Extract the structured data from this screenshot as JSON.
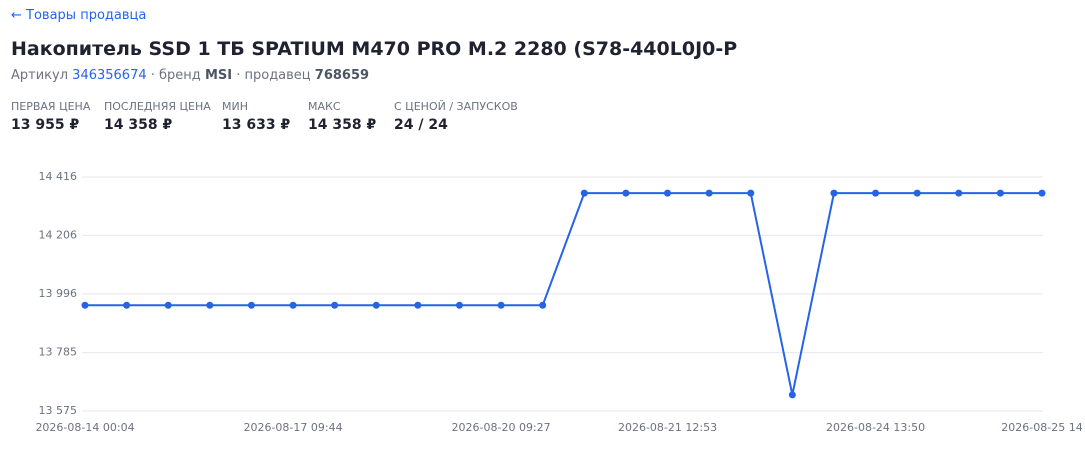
{
  "back_link": "← Товары продавца",
  "header": {
    "title": "Накопитель SSD 1 ТБ SPATIUM M470 PRO M.2 2280 (S78-440L0J0-P",
    "meta": {
      "article_label": "Артикул",
      "article": "346356674",
      "brand_label": "· бренд",
      "brand": "MSI",
      "seller_label": "· продавец",
      "seller": "768659"
    }
  },
  "stats": [
    {
      "label": "ПЕРВАЯ ЦЕНА",
      "value": "13 955 ₽"
    },
    {
      "label": "ПОСЛЕДНЯЯ ЦЕНА",
      "value": "14 358 ₽"
    },
    {
      "label": "МИН",
      "value": "13 633 ₽"
    },
    {
      "label": "МАКС",
      "value": "14 358 ₽"
    },
    {
      "label": "С ЦЕНОЙ / ЗАПУСКОВ",
      "value": "24 / 24"
    }
  ],
  "chart_data": {
    "type": "line",
    "categories": [
      "2026-08-14 00:04",
      null,
      null,
      null,
      null,
      "2026-08-17 09:44",
      null,
      null,
      null,
      null,
      "2026-08-20 09:27",
      null,
      null,
      null,
      "2026-08-21 12:53",
      null,
      null,
      null,
      null,
      "2026-08-24 13:50",
      null,
      null,
      null,
      "2026-08-25 14"
    ],
    "series": [
      {
        "name": "Цена",
        "color": "#2563eb",
        "values": [
          13955,
          13955,
          13955,
          13955,
          13955,
          13955,
          13955,
          13955,
          13955,
          13955,
          13955,
          13955,
          14358,
          14358,
          14358,
          14358,
          14358,
          13633,
          14358,
          14358,
          14358,
          14358,
          14358,
          14358
        ]
      }
    ],
    "ylim": [
      13575,
      14416
    ],
    "yticks": [
      {
        "value": 13575,
        "label": "13 575"
      },
      {
        "value": 13785,
        "label": "13 785"
      },
      {
        "value": 13996,
        "label": "13 996"
      },
      {
        "value": 14206,
        "label": "14 206"
      },
      {
        "value": 14416,
        "label": "14 416"
      }
    ],
    "grid": true
  }
}
